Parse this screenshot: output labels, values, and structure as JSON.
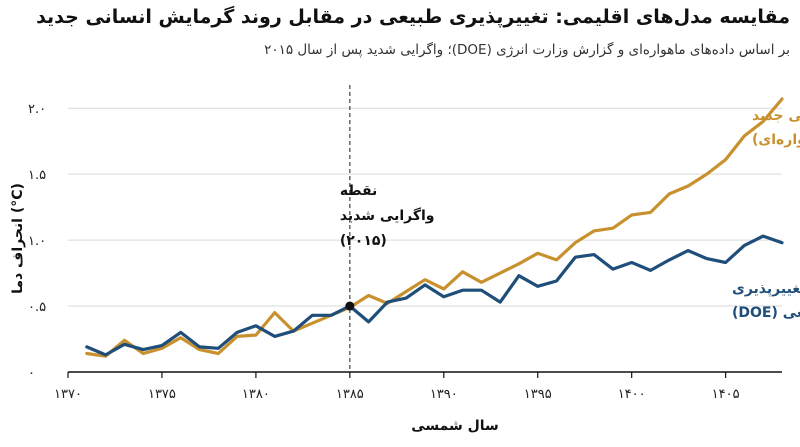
{
  "title": "مقایسه مدل‌های اقلیمی: تغییرپذیری طبیعی در مقابل روند گرمایش انسانی جدید",
  "subtitle": "بر اساس داده‌های ماهواره‌ای و گزارش وزارت انرژی (DOE)؛ واگرایی شدید پس از سال ۲۰۱۵",
  "colors": {
    "human_trend": "#C8912E",
    "natural": "#1E4E79",
    "grid": "#d9d9d9",
    "marker": "#111111"
  },
  "annotations": {
    "divergence": [
      "نقطه",
      "واگرایی شدید",
      "(۲۰۱۵)"
    ],
    "human_trend": [
      "روند گرمایش انسانی جدید",
      "(ماهواره‌ای)"
    ],
    "natural": [
      "مدل تغییرپذیری",
      "طبیعی طبیعی (DOE)"
    ]
  },
  "chart_data": {
    "type": "line",
    "title": "مقایسه مدل‌های اقلیمی: تغییرپذیری طبیعی در مقابل روند گرمایش انسانی جدید",
    "subtitle": "بر اساس داده‌های ماهواره‌ای و گزارش وزارت انرژی (DOE)؛ واگرایی شدید پس از سال ۲۰۱۵",
    "xlabel": "سال شمسی",
    "ylabel": "انحراف دما (°C)",
    "xlim": [
      1370,
      1408
    ],
    "ylim": [
      0,
      2.1
    ],
    "x_ticks": [
      1370,
      1375,
      1380,
      1385,
      1390,
      1395,
      1400,
      1405
    ],
    "x_tick_labels": [
      "۱۳۷۰",
      "۱۳۷۵",
      "۱۳۸۰",
      "۱۳۸۵",
      "۱۳۹۰",
      "۱۳۹۵",
      "۱۴۰۰",
      "۱۴۰۵"
    ],
    "y_ticks": [
      0,
      0.5,
      1.0,
      1.5,
      2.0
    ],
    "y_tick_labels": [
      "۰",
      "۰.۵",
      "۱.۰",
      "۱.۵",
      "۲.۰"
    ],
    "grid": "horizontal",
    "divergence_x": 1385,
    "divergence_y": 0.5,
    "series": [
      {
        "name": "روند گرمایش انسانی جدید (ماهواره‌ای)",
        "color": "#C8912E",
        "x": [
          1371,
          1372,
          1373,
          1374,
          1375,
          1376,
          1377,
          1378,
          1379,
          1380,
          1381,
          1382,
          1383,
          1384,
          1385,
          1386,
          1387,
          1388,
          1389,
          1390,
          1391,
          1392,
          1393,
          1394,
          1395,
          1396,
          1397,
          1398,
          1399,
          1400,
          1401,
          1402,
          1403,
          1404,
          1405,
          1406,
          1407,
          1408
        ],
        "y": [
          0.14,
          0.12,
          0.24,
          0.14,
          0.18,
          0.26,
          0.17,
          0.14,
          0.27,
          0.28,
          0.45,
          0.31,
          0.37,
          0.43,
          0.49,
          0.58,
          0.52,
          0.61,
          0.7,
          0.63,
          0.76,
          0.68,
          0.75,
          0.82,
          0.9,
          0.85,
          0.98,
          1.07,
          1.09,
          1.19,
          1.21,
          1.35,
          1.41,
          1.5,
          1.61,
          1.79,
          1.9,
          2.07
        ]
      },
      {
        "name": "مدل تغییرپذیری طبیعی طبیعی (DOE)",
        "color": "#1E4E79",
        "x": [
          1371,
          1372,
          1373,
          1374,
          1375,
          1376,
          1377,
          1378,
          1379,
          1380,
          1381,
          1382,
          1383,
          1384,
          1385,
          1386,
          1387,
          1388,
          1389,
          1390,
          1391,
          1392,
          1393,
          1394,
          1395,
          1396,
          1397,
          1398,
          1399,
          1400,
          1401,
          1402,
          1403,
          1404,
          1405,
          1406,
          1407,
          1408
        ],
        "y": [
          0.19,
          0.13,
          0.21,
          0.17,
          0.2,
          0.3,
          0.19,
          0.18,
          0.3,
          0.35,
          0.27,
          0.31,
          0.43,
          0.43,
          0.5,
          0.38,
          0.53,
          0.56,
          0.66,
          0.57,
          0.62,
          0.62,
          0.53,
          0.73,
          0.65,
          0.69,
          0.87,
          0.89,
          0.78,
          0.83,
          0.77,
          0.85,
          0.92,
          0.86,
          0.83,
          0.96,
          1.03,
          0.98
        ]
      }
    ]
  }
}
